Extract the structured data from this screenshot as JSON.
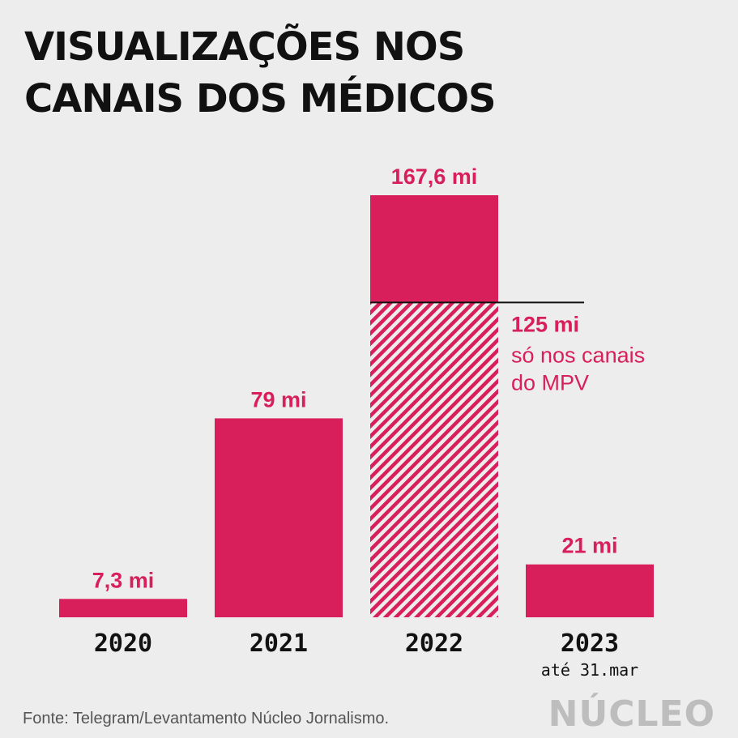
{
  "title": {
    "line1": "VISUALIZAÇÕES NOS",
    "line2": "CANAIS DOS MÉDICOS"
  },
  "colors": {
    "bar": "#d81f5b",
    "text": "#111111",
    "label": "#d81f5b",
    "background": "#ededed"
  },
  "chart_data": {
    "type": "bar",
    "categories": [
      "2020",
      "2021",
      "2022",
      "2023"
    ],
    "category_sublabels": [
      "",
      "",
      "",
      "até 31.mar"
    ],
    "values": [
      7.3,
      79,
      167.6,
      21
    ],
    "value_labels": [
      "7,3 mi",
      "79 mi",
      "167,6 mi",
      "21 mi"
    ],
    "ylim": [
      0,
      167.6
    ],
    "grid": false,
    "subset": {
      "category": "2022",
      "value": 125,
      "label": "125 mi",
      "note_lines": [
        "só nos canais",
        "do MPV"
      ],
      "style": "hatched"
    }
  },
  "footer": {
    "source": "Fonte: Telegram/Levantamento Núcleo Jornalismo.",
    "logo": "NÚCLEO"
  }
}
